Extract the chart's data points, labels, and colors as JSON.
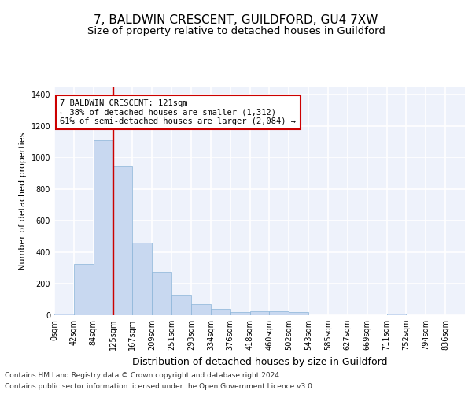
{
  "title": "7, BALDWIN CRESCENT, GUILDFORD, GU4 7XW",
  "subtitle": "Size of property relative to detached houses in Guildford",
  "xlabel": "Distribution of detached houses by size in Guildford",
  "ylabel": "Number of detached properties",
  "bar_color": "#c8d8f0",
  "bar_edge_color": "#8ab4d8",
  "background_color": "#eef2fb",
  "grid_color": "#ffffff",
  "tick_labels": [
    "0sqm",
    "42sqm",
    "84sqm",
    "125sqm",
    "167sqm",
    "209sqm",
    "251sqm",
    "293sqm",
    "334sqm",
    "376sqm",
    "418sqm",
    "460sqm",
    "502sqm",
    "543sqm",
    "585sqm",
    "627sqm",
    "669sqm",
    "711sqm",
    "752sqm",
    "794sqm",
    "836sqm"
  ],
  "bar_heights": [
    10,
    325,
    1110,
    945,
    460,
    275,
    130,
    68,
    38,
    22,
    25,
    25,
    18,
    0,
    0,
    0,
    0,
    10,
    0,
    0,
    0
  ],
  "ylim": [
    0,
    1450
  ],
  "yticks": [
    0,
    200,
    400,
    600,
    800,
    1000,
    1200,
    1400
  ],
  "vline_x": 3,
  "vline_color": "#cc0000",
  "annotation_text": "7 BALDWIN CRESCENT: 121sqm\n← 38% of detached houses are smaller (1,312)\n61% of semi-detached houses are larger (2,084) →",
  "annotation_box_color": "#ffffff",
  "annotation_box_edgecolor": "#cc0000",
  "footer_line1": "Contains HM Land Registry data © Crown copyright and database right 2024.",
  "footer_line2": "Contains public sector information licensed under the Open Government Licence v3.0.",
  "title_fontsize": 11,
  "subtitle_fontsize": 9.5,
  "xlabel_fontsize": 9,
  "ylabel_fontsize": 8,
  "tick_fontsize": 7,
  "annotation_fontsize": 7.5,
  "footer_fontsize": 6.5
}
